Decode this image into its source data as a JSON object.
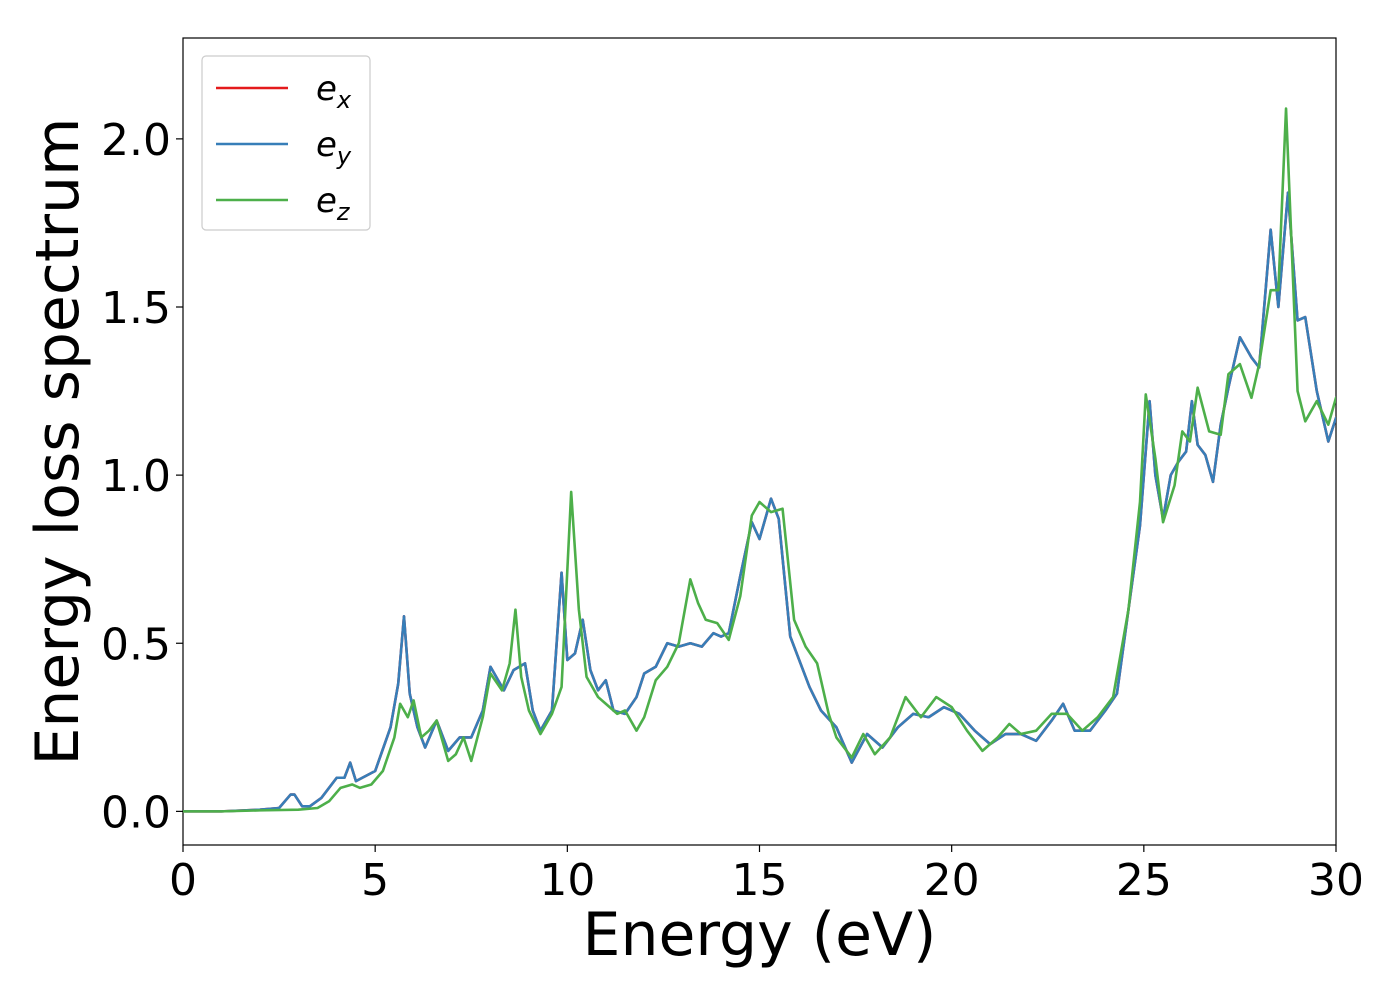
{
  "chart_data": {
    "type": "line",
    "title": "",
    "xlabel": "Energy (eV)",
    "ylabel": "Energy loss spectrum",
    "xlim": [
      0,
      30
    ],
    "ylim": [
      -0.1,
      2.3
    ],
    "xticks": [
      0,
      5,
      10,
      15,
      20,
      25,
      30
    ],
    "xtick_labels": [
      "0",
      "5",
      "10",
      "15",
      "20",
      "25",
      "30"
    ],
    "yticks": [
      0.0,
      0.5,
      1.0,
      1.5,
      2.0
    ],
    "ytick_labels": [
      "0.0",
      "0.5",
      "1.0",
      "1.5",
      "2.0"
    ],
    "grid": false,
    "legend_position": "top-left",
    "series": [
      {
        "name": "e_x",
        "legend_base": "e",
        "legend_sub": "x",
        "color": "#e41a1c",
        "x": [
          0,
          1,
          2,
          2.5,
          2.8,
          2.9,
          3.1,
          3.3,
          3.6,
          4.0,
          4.2,
          4.35,
          4.5,
          5.0,
          5.4,
          5.6,
          5.75,
          5.9,
          6.1,
          6.3,
          6.6,
          6.9,
          7.2,
          7.5,
          7.8,
          8.0,
          8.2,
          8.35,
          8.6,
          8.9,
          9.1,
          9.3,
          9.6,
          9.85,
          10.0,
          10.2,
          10.4,
          10.6,
          10.8,
          11.0,
          11.2,
          11.5,
          11.8,
          12.0,
          12.3,
          12.6,
          12.9,
          13.2,
          13.5,
          13.8,
          14.0,
          14.2,
          14.5,
          14.8,
          15.0,
          15.3,
          15.5,
          15.8,
          16.0,
          16.3,
          16.6,
          17.0,
          17.4,
          17.8,
          18.2,
          18.6,
          19.0,
          19.4,
          19.8,
          20.2,
          20.6,
          21.0,
          21.4,
          21.8,
          22.2,
          22.6,
          22.9,
          23.2,
          23.6,
          24.0,
          24.3,
          24.6,
          24.9,
          25.15,
          25.3,
          25.5,
          25.7,
          25.9,
          26.1,
          26.25,
          26.4,
          26.6,
          26.8,
          27.0,
          27.2,
          27.5,
          27.8,
          28.0,
          28.3,
          28.5,
          28.75,
          29.0,
          29.2,
          29.5,
          29.8,
          30.0
        ],
        "y": [
          0.0,
          0.0,
          0.005,
          0.01,
          0.05,
          0.05,
          0.015,
          0.015,
          0.04,
          0.1,
          0.1,
          0.145,
          0.09,
          0.12,
          0.25,
          0.38,
          0.58,
          0.35,
          0.25,
          0.19,
          0.27,
          0.18,
          0.22,
          0.22,
          0.3,
          0.43,
          0.39,
          0.36,
          0.42,
          0.44,
          0.3,
          0.24,
          0.3,
          0.71,
          0.45,
          0.47,
          0.57,
          0.42,
          0.36,
          0.39,
          0.3,
          0.29,
          0.34,
          0.41,
          0.43,
          0.5,
          0.49,
          0.5,
          0.49,
          0.53,
          0.52,
          0.53,
          0.7,
          0.86,
          0.81,
          0.93,
          0.87,
          0.52,
          0.46,
          0.37,
          0.3,
          0.25,
          0.145,
          0.23,
          0.19,
          0.25,
          0.29,
          0.28,
          0.31,
          0.29,
          0.24,
          0.2,
          0.23,
          0.23,
          0.21,
          0.27,
          0.32,
          0.24,
          0.24,
          0.3,
          0.35,
          0.6,
          0.85,
          1.22,
          1.0,
          0.87,
          1.0,
          1.04,
          1.07,
          1.22,
          1.09,
          1.06,
          0.98,
          1.15,
          1.26,
          1.41,
          1.35,
          1.32,
          1.73,
          1.5,
          1.84,
          1.46,
          1.47,
          1.25,
          1.1,
          1.17
        ]
      },
      {
        "name": "e_y",
        "legend_base": "e",
        "legend_sub": "y",
        "color": "#377eb8",
        "x": [
          0,
          1,
          2,
          2.5,
          2.8,
          2.9,
          3.1,
          3.3,
          3.6,
          4.0,
          4.2,
          4.35,
          4.5,
          5.0,
          5.4,
          5.6,
          5.75,
          5.9,
          6.1,
          6.3,
          6.6,
          6.9,
          7.2,
          7.5,
          7.8,
          8.0,
          8.2,
          8.35,
          8.6,
          8.9,
          9.1,
          9.3,
          9.6,
          9.85,
          10.0,
          10.2,
          10.4,
          10.6,
          10.8,
          11.0,
          11.2,
          11.5,
          11.8,
          12.0,
          12.3,
          12.6,
          12.9,
          13.2,
          13.5,
          13.8,
          14.0,
          14.2,
          14.5,
          14.8,
          15.0,
          15.3,
          15.5,
          15.8,
          16.0,
          16.3,
          16.6,
          17.0,
          17.4,
          17.8,
          18.2,
          18.6,
          19.0,
          19.4,
          19.8,
          20.2,
          20.6,
          21.0,
          21.4,
          21.8,
          22.2,
          22.6,
          22.9,
          23.2,
          23.6,
          24.0,
          24.3,
          24.6,
          24.9,
          25.15,
          25.3,
          25.5,
          25.7,
          25.9,
          26.1,
          26.25,
          26.4,
          26.6,
          26.8,
          27.0,
          27.2,
          27.5,
          27.8,
          28.0,
          28.3,
          28.5,
          28.75,
          29.0,
          29.2,
          29.5,
          29.8,
          30.0
        ],
        "y": [
          0.0,
          0.0,
          0.005,
          0.01,
          0.05,
          0.05,
          0.015,
          0.015,
          0.04,
          0.1,
          0.1,
          0.145,
          0.09,
          0.12,
          0.25,
          0.38,
          0.58,
          0.35,
          0.25,
          0.19,
          0.27,
          0.18,
          0.22,
          0.22,
          0.3,
          0.43,
          0.39,
          0.36,
          0.42,
          0.44,
          0.3,
          0.24,
          0.3,
          0.71,
          0.45,
          0.47,
          0.57,
          0.42,
          0.36,
          0.39,
          0.3,
          0.29,
          0.34,
          0.41,
          0.43,
          0.5,
          0.49,
          0.5,
          0.49,
          0.53,
          0.52,
          0.53,
          0.7,
          0.86,
          0.81,
          0.93,
          0.87,
          0.52,
          0.46,
          0.37,
          0.3,
          0.25,
          0.145,
          0.23,
          0.19,
          0.25,
          0.29,
          0.28,
          0.31,
          0.29,
          0.24,
          0.2,
          0.23,
          0.23,
          0.21,
          0.27,
          0.32,
          0.24,
          0.24,
          0.3,
          0.35,
          0.6,
          0.85,
          1.22,
          1.0,
          0.87,
          1.0,
          1.04,
          1.07,
          1.22,
          1.09,
          1.06,
          0.98,
          1.15,
          1.26,
          1.41,
          1.35,
          1.32,
          1.73,
          1.5,
          1.84,
          1.46,
          1.47,
          1.25,
          1.1,
          1.17
        ]
      },
      {
        "name": "e_z",
        "legend_base": "e",
        "legend_sub": "z",
        "color": "#4daf4a",
        "x": [
          0,
          1,
          2,
          3,
          3.5,
          3.8,
          4.1,
          4.4,
          4.6,
          4.9,
          5.2,
          5.5,
          5.65,
          5.85,
          6.0,
          6.2,
          6.4,
          6.6,
          6.9,
          7.1,
          7.3,
          7.5,
          7.8,
          8.0,
          8.3,
          8.5,
          8.65,
          8.8,
          9.0,
          9.3,
          9.6,
          9.85,
          10.1,
          10.3,
          10.5,
          10.8,
          11.0,
          11.3,
          11.5,
          11.8,
          12.0,
          12.3,
          12.6,
          12.9,
          13.2,
          13.4,
          13.6,
          13.9,
          14.2,
          14.5,
          14.8,
          15.0,
          15.3,
          15.6,
          15.9,
          16.2,
          16.5,
          16.8,
          17.0,
          17.4,
          17.7,
          18.0,
          18.4,
          18.8,
          19.2,
          19.6,
          20.0,
          20.4,
          20.8,
          21.2,
          21.5,
          21.8,
          22.2,
          22.6,
          23.0,
          23.4,
          23.8,
          24.2,
          24.6,
          24.9,
          25.05,
          25.3,
          25.5,
          25.8,
          26.0,
          26.2,
          26.4,
          26.7,
          27.0,
          27.2,
          27.5,
          27.8,
          28.0,
          28.3,
          28.5,
          28.7,
          29.0,
          29.2,
          29.5,
          29.8,
          30.0
        ],
        "y": [
          0.0,
          0.0,
          0.003,
          0.005,
          0.01,
          0.03,
          0.07,
          0.08,
          0.07,
          0.08,
          0.12,
          0.22,
          0.32,
          0.28,
          0.33,
          0.22,
          0.24,
          0.27,
          0.15,
          0.17,
          0.22,
          0.15,
          0.28,
          0.41,
          0.36,
          0.44,
          0.6,
          0.4,
          0.3,
          0.23,
          0.29,
          0.37,
          0.95,
          0.6,
          0.4,
          0.34,
          0.32,
          0.29,
          0.3,
          0.24,
          0.28,
          0.39,
          0.43,
          0.5,
          0.69,
          0.62,
          0.57,
          0.56,
          0.51,
          0.64,
          0.88,
          0.92,
          0.89,
          0.9,
          0.57,
          0.49,
          0.44,
          0.29,
          0.22,
          0.16,
          0.23,
          0.17,
          0.22,
          0.34,
          0.28,
          0.34,
          0.31,
          0.24,
          0.18,
          0.22,
          0.26,
          0.23,
          0.24,
          0.29,
          0.29,
          0.24,
          0.28,
          0.34,
          0.6,
          0.92,
          1.24,
          1.05,
          0.86,
          0.97,
          1.13,
          1.1,
          1.26,
          1.13,
          1.12,
          1.3,
          1.33,
          1.23,
          1.33,
          1.55,
          1.55,
          2.09,
          1.25,
          1.16,
          1.22,
          1.15,
          1.23
        ]
      }
    ]
  }
}
